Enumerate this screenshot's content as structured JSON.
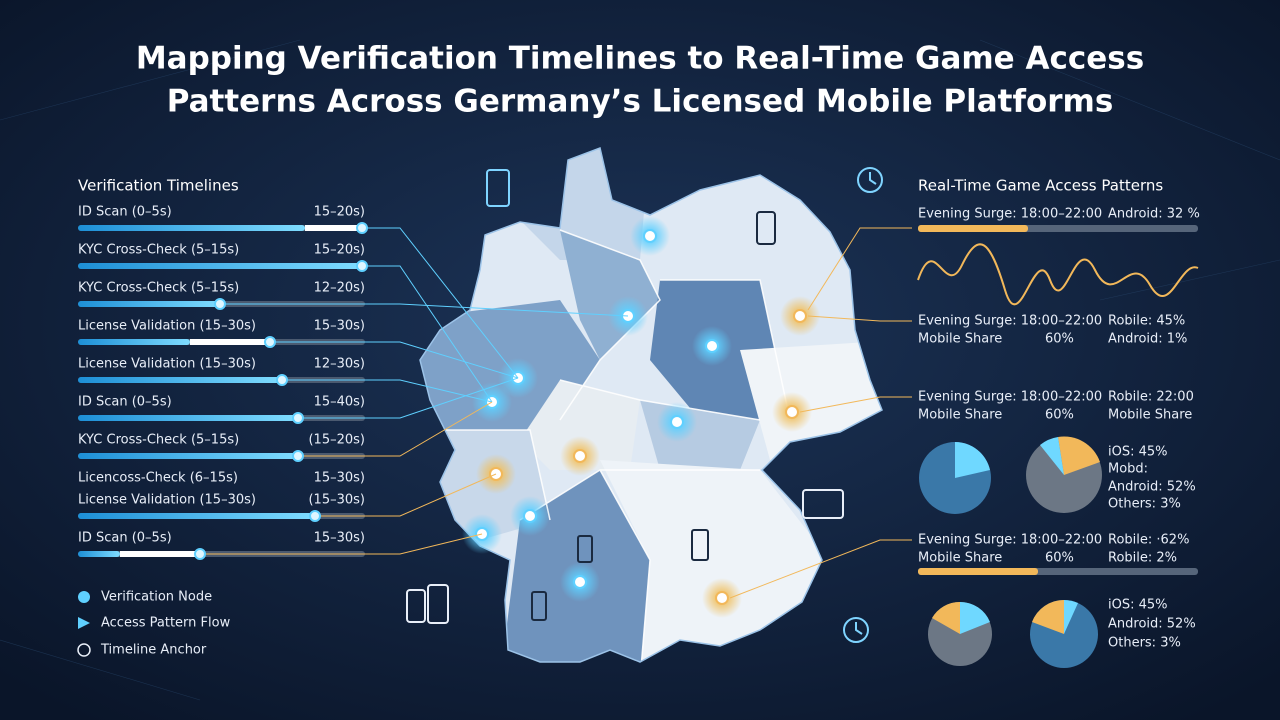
{
  "header": {
    "title_line_1": "Mapping Verification Timelines to Real-Time Game Access",
    "title_line_2": "Patterns Across Germany’s Licensed Mobile Platforms"
  },
  "verification": {
    "heading": "Verification Timelines",
    "items": [
      {
        "label": "ID Scan (0–5s)",
        "range": "15–20s)"
      },
      {
        "label": "KYC Cross-Check (5–15s)",
        "range": "15–20s)"
      },
      {
        "label": "KYC Cross-Check (5–15s)",
        "range": "12–20s)"
      },
      {
        "label": "License Validation (15–30s)",
        "range": "15–30s)"
      },
      {
        "label": "License Validation (15–30s)",
        "range": "12–30s)"
      },
      {
        "label": "ID Scan (0–5s)",
        "range": "15–40s)"
      },
      {
        "label": "KYC Cross-Check (5–15s)",
        "range": "(15–20s)"
      },
      {
        "label": "Licencoss-Check (6–15s)",
        "range": "15–30s)"
      },
      {
        "label": "License Validation (15–30s)",
        "range": "(15–30s)"
      },
      {
        "label": "ID Scan (0–5s)",
        "range": "15–30s)"
      }
    ]
  },
  "legend": {
    "items": [
      "Verification Node",
      "Access Pattern Flow",
      "Timeline Anchor"
    ]
  },
  "access": {
    "heading": "Real-Time Game Access Patterns",
    "summary": {
      "window": "Evening Surge: 18:00–22:00",
      "right": "Android: 32 %"
    },
    "blocks": [
      {
        "window": "Evening Surge: 18:00–22:00",
        "right_1": "Robile: 45%",
        "share_label": "Mobile Share",
        "share_value": "60%",
        "right_2": "Android: 1%"
      },
      {
        "window": "Evening Surge: 18:00–22:00",
        "right_1": "Robile: 22:00",
        "share_label": "Mobile Share",
        "share_value": "60%",
        "right_2": "Mobile Share"
      },
      {
        "window": "Evening Surge: 18:00–22:00",
        "right_1": "Robile: ·62%",
        "share_label": "Mobile Share",
        "share_value": "60%",
        "right_2": "Robile: 2%"
      }
    ],
    "pie_legends": [
      [
        "iOS: 45%",
        "Mobd:",
        "Android: 52%",
        "Others: 3%"
      ],
      [
        "iOS: 45%",
        "Android: 52%",
        "Others: 3%"
      ]
    ]
  }
}
